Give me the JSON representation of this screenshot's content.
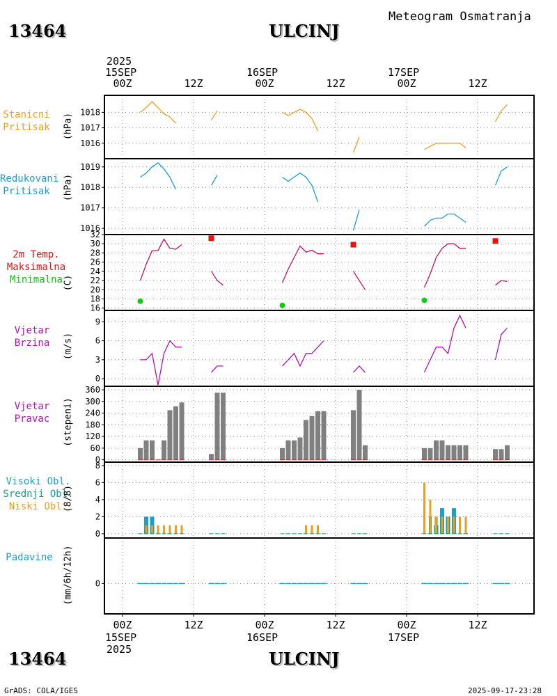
{
  "header": {
    "station_id": "13464",
    "station_name": "ULCINJ",
    "subtitle": "Meteogram Osmatranja"
  },
  "footer": {
    "credit": "GrADS: COLA/IGES",
    "timestamp": "2025-09-17-23:28"
  },
  "time_axis": {
    "year": "2025",
    "dates": [
      "15SEP",
      "16SEP",
      "17SEP"
    ],
    "hour_labels": [
      "00Z",
      "12Z",
      "00Z",
      "12Z",
      "00Z",
      "12Z"
    ],
    "hour_values": [
      0,
      12,
      24,
      36,
      48,
      60
    ]
  },
  "chart_data": [
    {
      "type": "line",
      "panel": "station-pressure",
      "label": [
        "Stanicni",
        "Pritisak"
      ],
      "unit": "(hPa)",
      "color": "#e8a020",
      "yticks": [
        1016,
        1017,
        1018
      ],
      "ylim": [
        1015.0,
        1019.1
      ],
      "series": [
        {
          "x": [
            3,
            4,
            5,
            6,
            7,
            8,
            9
          ],
          "y": [
            1018.0,
            1018.3,
            1018.7,
            1018.3,
            1017.9,
            1017.7,
            1017.3
          ]
        },
        {
          "x": [
            9.5
          ],
          "y": [
            1017.5
          ]
        },
        {
          "x": [
            15,
            16
          ],
          "y": [
            1017.5,
            1018.1
          ]
        },
        {
          "x": [
            27,
            28,
            29,
            30,
            31,
            32,
            33
          ],
          "y": [
            1018.0,
            1017.8,
            1018.0,
            1018.2,
            1018.0,
            1017.6,
            1016.8
          ]
        },
        {
          "x": [
            39,
            40
          ],
          "y": [
            1015.4,
            1016.4
          ]
        },
        {
          "x": [
            51,
            52,
            53,
            54,
            55,
            56,
            57,
            58
          ],
          "y": [
            1015.6,
            1015.8,
            1016.0,
            1016.0,
            1016.0,
            1016.0,
            1016.0,
            1015.7
          ]
        },
        {
          "x": [
            63,
            64,
            65
          ],
          "y": [
            1017.4,
            1018.1,
            1018.5
          ]
        }
      ]
    },
    {
      "type": "line",
      "panel": "reduced-pressure",
      "label": [
        "Redukovani",
        "Pritisak"
      ],
      "unit": "(hPa)",
      "color": "#1a9ed0",
      "yticks": [
        1016,
        1017,
        1018,
        1019
      ],
      "ylim": [
        1015.7,
        1019.4
      ],
      "series": [
        {
          "x": [
            3,
            4,
            5,
            6,
            7,
            8,
            9
          ],
          "y": [
            1018.5,
            1018.7,
            1019.0,
            1019.2,
            1018.9,
            1018.5,
            1017.9
          ]
        },
        {
          "x": [
            15,
            16
          ],
          "y": [
            1018.1,
            1018.6
          ]
        },
        {
          "x": [
            27,
            28,
            29,
            30,
            31,
            32,
            33
          ],
          "y": [
            1018.5,
            1018.3,
            1018.5,
            1018.7,
            1018.5,
            1018.1,
            1017.3
          ]
        },
        {
          "x": [
            39,
            40
          ],
          "y": [
            1015.9,
            1016.9
          ]
        },
        {
          "x": [
            51,
            52,
            53,
            54,
            55,
            56,
            57,
            58
          ],
          "y": [
            1016.1,
            1016.4,
            1016.5,
            1016.5,
            1016.7,
            1016.7,
            1016.5,
            1016.3
          ]
        },
        {
          "x": [
            63,
            64,
            65
          ],
          "y": [
            1018.1,
            1018.8,
            1019.0
          ]
        }
      ]
    },
    {
      "type": "line",
      "panel": "temperature",
      "label": [
        "2m Temp.",
        "Maksimalna",
        "Minimalna"
      ],
      "label_colors": [
        "#e01010",
        "#e01010",
        "#10c010"
      ],
      "unit": "(C)",
      "color": "#c01060",
      "max_color": "#ee1111",
      "min_color": "#11cc11",
      "yticks": [
        16,
        18,
        20,
        22,
        24,
        26,
        28,
        30,
        32
      ],
      "ylim": [
        15.5,
        32.0
      ],
      "series": [
        {
          "x": [
            3,
            4,
            5,
            6,
            7,
            8,
            9,
            10
          ],
          "y": [
            22,
            25.5,
            28.5,
            28.5,
            31,
            29,
            28.8,
            29.8
          ]
        },
        {
          "x": [
            15,
            16,
            17
          ],
          "y": [
            24,
            22,
            21
          ]
        },
        {
          "x": [
            27,
            28,
            29,
            30,
            31,
            32,
            33,
            34
          ],
          "y": [
            21.5,
            24.5,
            27,
            29.5,
            28.2,
            28.6,
            27.8,
            27.8
          ]
        },
        {
          "x": [
            39,
            40,
            41
          ],
          "y": [
            24,
            22,
            20
          ]
        },
        {
          "x": [
            51,
            52,
            53,
            54,
            55,
            56,
            57,
            58
          ],
          "y": [
            20.5,
            23.5,
            27,
            29,
            30,
            30,
            29,
            29
          ]
        },
        {
          "x": [
            63,
            64,
            65
          ],
          "y": [
            21,
            22,
            21.8
          ]
        }
      ],
      "max_points": {
        "x": [
          15,
          39,
          63
        ],
        "y": [
          31.2,
          29.8,
          30.6
        ]
      },
      "min_points": {
        "x": [
          3,
          27,
          51
        ],
        "y": [
          17.5,
          16.6,
          17.7
        ]
      }
    },
    {
      "type": "line",
      "panel": "wind-speed",
      "label": [
        "Vjetar",
        "Brzina"
      ],
      "unit": "(m/s)",
      "color": "#b010b0",
      "yticks": [
        0,
        3,
        6,
        9
      ],
      "ylim": [
        -1.2,
        10.8
      ],
      "series": [
        {
          "x": [
            3,
            4,
            5,
            6,
            7,
            8,
            9,
            10
          ],
          "y": [
            3,
            3,
            4,
            -1,
            4,
            6,
            5,
            5
          ]
        },
        {
          "x": [
            15,
            16,
            17
          ],
          "y": [
            1,
            2,
            2
          ]
        },
        {
          "x": [
            27,
            28,
            29,
            30,
            31,
            32,
            33,
            34
          ],
          "y": [
            2,
            3,
            4,
            2,
            4,
            4,
            5,
            6
          ]
        },
        {
          "x": [
            39,
            40,
            41
          ],
          "y": [
            1,
            2,
            1
          ]
        },
        {
          "x": [
            51,
            52,
            53,
            54,
            55,
            56,
            57,
            58
          ],
          "y": [
            1,
            3,
            5,
            5,
            4,
            8,
            10,
            8
          ]
        },
        {
          "x": [
            63,
            64,
            65
          ],
          "y": [
            3,
            7,
            8
          ]
        }
      ]
    },
    {
      "type": "bar",
      "panel": "wind-direction",
      "label": [
        "Vjetar",
        "Pravac"
      ],
      "unit": "(stepeni)",
      "color": "#808080",
      "yticks": [
        0,
        60,
        120,
        180,
        240,
        300,
        360
      ],
      "ylim": [
        -12,
        378
      ],
      "x": [
        3,
        4,
        5,
        6,
        7,
        8,
        9,
        10,
        15,
        16,
        17,
        27,
        28,
        29,
        30,
        31,
        32,
        33,
        34,
        39,
        40,
        41,
        51,
        52,
        53,
        54,
        55,
        56,
        57,
        58,
        63,
        64,
        65
      ],
      "values": [
        60,
        100,
        100,
        0,
        100,
        255,
        275,
        295,
        30,
        345,
        345,
        60,
        100,
        100,
        115,
        205,
        225,
        250,
        250,
        255,
        360,
        75,
        60,
        60,
        100,
        100,
        75,
        75,
        75,
        75,
        55,
        55,
        75
      ]
    },
    {
      "type": "bar",
      "panel": "clouds",
      "label": [
        "Visoki Obl.",
        "Srednji Obl.",
        "Niski Obl."
      ],
      "label_colors": [
        "#1a9ed0",
        "#10a080",
        "#e8a020"
      ],
      "unit": "(8/8)",
      "yticks": [
        0,
        2,
        4,
        6,
        8
      ],
      "ylim": [
        -0.5,
        8.4
      ],
      "series": [
        {
          "name": "Visoki Obl.",
          "color": "#1a9ed0",
          "x": [
            4,
            5,
            53,
            54,
            55,
            56
          ],
          "values": [
            2,
            2,
            1,
            3,
            2,
            3
          ]
        },
        {
          "name": "Srednji Obl.",
          "color": "#10a080",
          "x": [
            4,
            51,
            52,
            53,
            54,
            55,
            56
          ],
          "values": [
            1,
            0,
            2,
            2,
            2,
            2,
            0
          ]
        },
        {
          "name": "Niski Obl.",
          "color": "#e8a020",
          "x": [
            4,
            5,
            6,
            7,
            8,
            9,
            10,
            31,
            32,
            33,
            51,
            52,
            53,
            54,
            55,
            56,
            57,
            58
          ],
          "values": [
            1,
            1,
            1,
            1,
            1,
            1,
            1,
            1,
            1,
            1,
            6,
            4,
            2,
            2,
            2,
            2,
            2,
            2
          ]
        }
      ]
    },
    {
      "type": "bar",
      "panel": "precipitation",
      "label": [
        "Padavine"
      ],
      "unit": "(mm/6h/12h)",
      "color": "#1a9ed0",
      "yticks": [
        0
      ],
      "ylim": [
        -0.6,
        0.9
      ],
      "x": [
        3,
        4,
        5,
        6,
        7,
        8,
        9,
        10,
        15,
        16,
        17,
        27,
        28,
        29,
        30,
        31,
        32,
        33,
        34,
        39,
        40,
        41,
        51,
        52,
        53,
        54,
        55,
        56,
        57,
        58,
        63,
        64,
        65
      ],
      "values": [
        0,
        0,
        0,
        0,
        0,
        0,
        0,
        0,
        0,
        0,
        0,
        0,
        0,
        0,
        0,
        0,
        0,
        0,
        0,
        0,
        0,
        0,
        0,
        0,
        0,
        0,
        0,
        0,
        0,
        0,
        0,
        0,
        0
      ]
    }
  ]
}
